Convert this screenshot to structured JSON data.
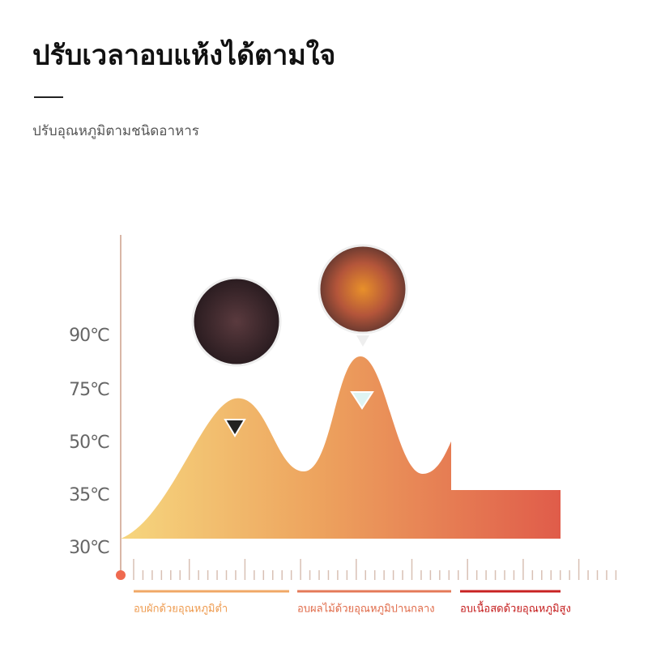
{
  "header": {
    "title": "ปรับเวลาอบแห้งได้ตามใจ",
    "subtitle": "ปรับอุณหภูมิตามชนิดอาหาร"
  },
  "temperature_labels": [
    "90℃",
    "75℃",
    "50℃",
    "35℃",
    "30℃"
  ],
  "segments": [
    "อบผักด้วยอุณหภูมิต่ำ",
    "อบผลไม้ด้วยอุณหภูมิปานกลาง",
    "อบเนื้อสดด้วยอุณหภูมิสูง"
  ]
}
